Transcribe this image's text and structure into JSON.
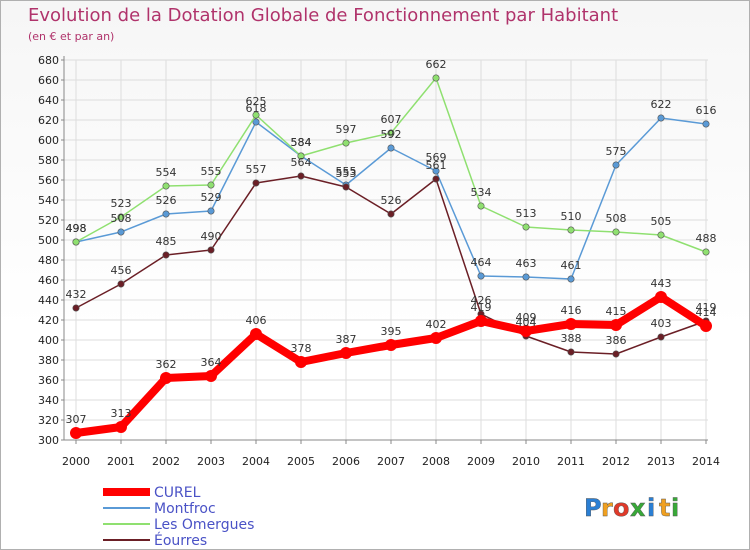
{
  "chart_data": {
    "type": "line",
    "title": "Evolution de la Dotation Globale de Fonctionnement par Habitant",
    "subtitle": "(en € et par an)",
    "xlabel": "",
    "ylabel": "",
    "ylim": [
      300,
      680
    ],
    "ytick_step": 20,
    "grid": true,
    "categories": [
      "2000",
      "2001",
      "2002",
      "2003",
      "2004",
      "2005",
      "2006",
      "2007",
      "2008",
      "2009",
      "2010",
      "2011",
      "2012",
      "2013",
      "2014"
    ],
    "series": [
      {
        "name": "CUREL",
        "color": "#ff0000",
        "values": [
          307,
          313,
          362,
          364,
          406,
          378,
          387,
          395,
          402,
          419,
          409,
          416,
          415,
          443,
          414
        ]
      },
      {
        "name": "Montfroc",
        "color": "#5a9ad6",
        "values": [
          498,
          508,
          526,
          529,
          618,
          584,
          555,
          592,
          569,
          464,
          463,
          461,
          575,
          622,
          616
        ]
      },
      {
        "name": "Les Omergues",
        "color": "#8fe070",
        "values": [
          498,
          523,
          554,
          555,
          625,
          584,
          597,
          607,
          662,
          534,
          513,
          510,
          508,
          505,
          488
        ]
      },
      {
        "name": "Éourres",
        "color": "#6b1f26",
        "values": [
          432,
          456,
          485,
          490,
          557,
          564,
          553,
          526,
          561,
          426,
          404,
          388,
          386,
          403,
          419
        ]
      }
    ],
    "legend_position": "bottom-left"
  },
  "brand": {
    "letters": [
      "P",
      "r",
      "o",
      "x",
      "i",
      "t",
      "i"
    ],
    "colors": [
      "#2a7fd4",
      "#f0a020",
      "#e03a2a",
      "#38a838",
      "#2a7fd4",
      "#f0a020",
      "#38a838"
    ]
  }
}
